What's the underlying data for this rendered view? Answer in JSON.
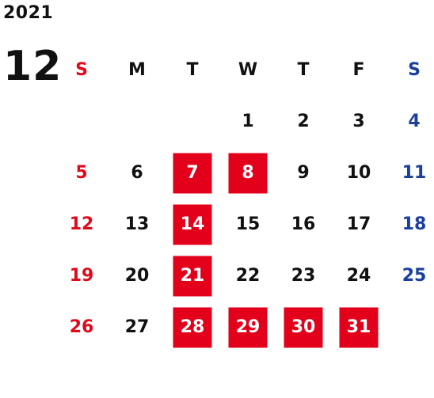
{
  "year": "2021",
  "month": "12",
  "colors": {
    "sunday": "#e10a1b",
    "saturday": "#1a3f9c",
    "highlight_bg": "#e2001a",
    "default_text": "#111111"
  },
  "weekdays": [
    "S",
    "M",
    "T",
    "W",
    "T",
    "F",
    "S"
  ],
  "weeks": [
    [
      {
        "day": ""
      },
      {
        "day": ""
      },
      {
        "day": ""
      },
      {
        "day": "1"
      },
      {
        "day": "2"
      },
      {
        "day": "3"
      },
      {
        "day": "4"
      }
    ],
    [
      {
        "day": "5"
      },
      {
        "day": "6"
      },
      {
        "day": "7",
        "highlighted": true
      },
      {
        "day": "8",
        "highlighted": true
      },
      {
        "day": "9"
      },
      {
        "day": "10"
      },
      {
        "day": "11"
      }
    ],
    [
      {
        "day": "12"
      },
      {
        "day": "13"
      },
      {
        "day": "14",
        "highlighted": true
      },
      {
        "day": "15"
      },
      {
        "day": "16"
      },
      {
        "day": "17"
      },
      {
        "day": "18"
      }
    ],
    [
      {
        "day": "19"
      },
      {
        "day": "20"
      },
      {
        "day": "21",
        "highlighted": true
      },
      {
        "day": "22"
      },
      {
        "day": "23"
      },
      {
        "day": "24"
      },
      {
        "day": "25"
      }
    ],
    [
      {
        "day": "26"
      },
      {
        "day": "27"
      },
      {
        "day": "28",
        "highlighted": true
      },
      {
        "day": "29",
        "highlighted": true
      },
      {
        "day": "30",
        "highlighted": true
      },
      {
        "day": "31",
        "highlighted": true
      },
      {
        "day": ""
      }
    ]
  ]
}
